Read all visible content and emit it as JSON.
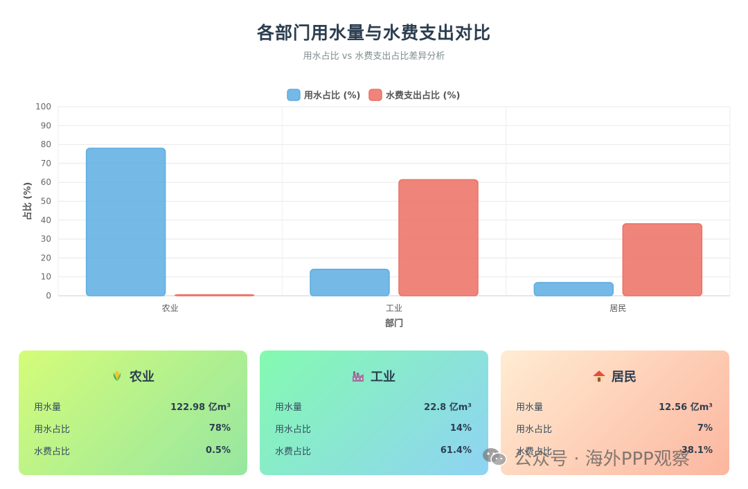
{
  "header": {
    "title": "各部门用水量与水费支出对比",
    "subtitle": "用水占比 vs 水费支出占比差异分析"
  },
  "chart_data": {
    "type": "bar",
    "categories": [
      "农业",
      "工业",
      "居民"
    ],
    "series": [
      {
        "name": "用水占比 (%)",
        "values": [
          78,
          14,
          7
        ],
        "color": "#5dade2"
      },
      {
        "name": "水费支出占比 (%)",
        "values": [
          0.5,
          61.4,
          38.1
        ],
        "color": "#ec7063"
      }
    ],
    "xlabel": "部门",
    "ylabel": "占比 (%)",
    "ylim": [
      0,
      100
    ],
    "yticks": [
      0,
      10,
      20,
      30,
      40,
      50,
      60,
      70,
      80,
      90,
      100
    ],
    "grid": true,
    "legend_position": "top"
  },
  "cards": [
    {
      "title": "农业",
      "icon": "corn-icon",
      "rows": [
        {
          "label": "用水量",
          "value": "122.98 亿m³"
        },
        {
          "label": "用水占比",
          "value": "78%"
        },
        {
          "label": "水费占比",
          "value": "0.5%"
        }
      ]
    },
    {
      "title": "工业",
      "icon": "factory-icon",
      "rows": [
        {
          "label": "用水量",
          "value": "22.8 亿m³"
        },
        {
          "label": "用水占比",
          "value": "14%"
        },
        {
          "label": "水费占比",
          "value": "61.4%"
        }
      ]
    },
    {
      "title": "居民",
      "icon": "house-icon",
      "rows": [
        {
          "label": "用水量",
          "value": "12.56 亿m³"
        },
        {
          "label": "用水占比",
          "value": "7%"
        },
        {
          "label": "水费占比",
          "value": "38.1%"
        }
      ]
    }
  ],
  "watermark": {
    "text": "公众号 · 海外PPP观察",
    "icon": "wechat-icon"
  }
}
